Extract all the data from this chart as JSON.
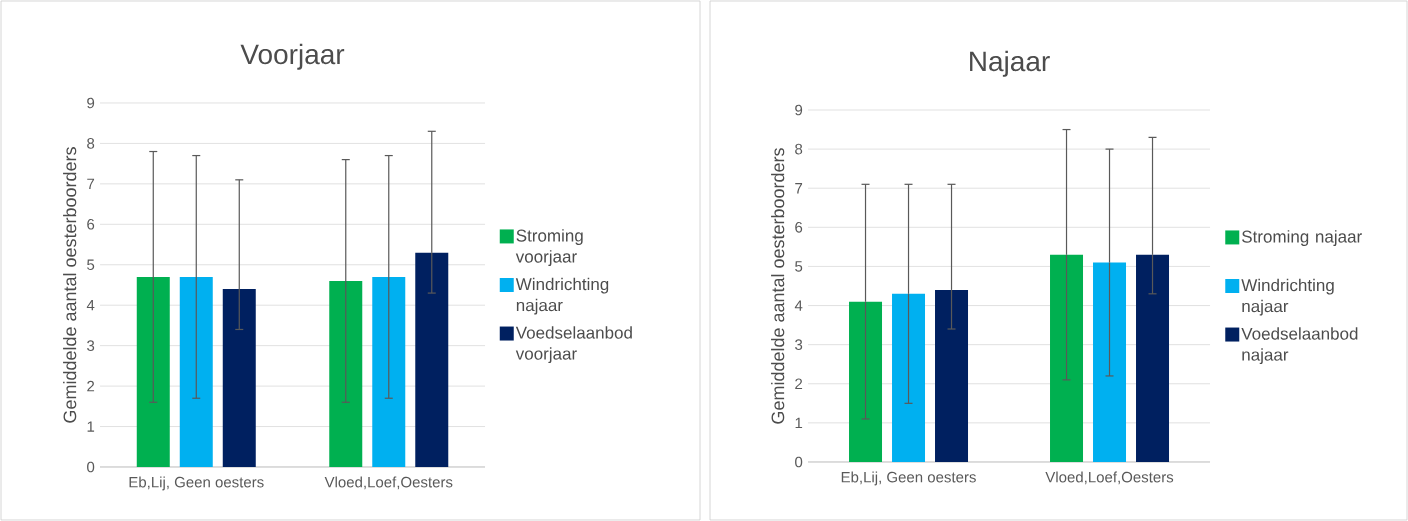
{
  "chart_data": [
    {
      "type": "bar",
      "title": "Voorjaar",
      "ylabel": "Gemiddelde aantal oesterboorders",
      "categories": [
        "Eb,Lij, Geen oesters",
        "Vloed,Loef,Oesters"
      ],
      "ylim": [
        0,
        9
      ],
      "yticks": [
        0,
        1,
        2,
        3,
        4,
        5,
        6,
        7,
        8,
        9
      ],
      "grid": "y",
      "legend": "right",
      "series": [
        {
          "name": "Stroming voorjaar",
          "color": "#00b050",
          "values": [
            4.7,
            4.6
          ],
          "errors": [
            [
              1.6,
              7.8
            ],
            [
              1.6,
              7.6
            ]
          ]
        },
        {
          "name": "Windrichting najaar",
          "color": "#00b0f0",
          "values": [
            4.7,
            4.7
          ],
          "errors": [
            [
              1.7,
              7.7
            ],
            [
              1.7,
              7.7
            ]
          ]
        },
        {
          "name": "Voedselaanbod voorjaar",
          "color": "#002060",
          "values": [
            4.4,
            5.3
          ],
          "errors": [
            [
              3.4,
              7.1
            ],
            [
              4.3,
              8.3
            ]
          ]
        }
      ]
    },
    {
      "type": "bar",
      "title": "Najaar",
      "ylabel": "Gemiddelde aantal oesterboorders",
      "categories": [
        "Eb,Lij, Geen oesters",
        "Vloed,Loef,Oesters"
      ],
      "ylim": [
        0,
        9
      ],
      "yticks": [
        0,
        1,
        2,
        3,
        4,
        5,
        6,
        7,
        8,
        9
      ],
      "grid": "y",
      "legend": "right",
      "series": [
        {
          "name": "Stroming najaar",
          "color": "#00b050",
          "values": [
            4.1,
            5.3
          ],
          "errors": [
            [
              1.1,
              7.1
            ],
            [
              2.1,
              8.5
            ]
          ]
        },
        {
          "name": "Windrichting najaar",
          "color": "#00b0f0",
          "values": [
            4.3,
            5.1
          ],
          "errors": [
            [
              1.5,
              7.1
            ],
            [
              2.2,
              8.0
            ]
          ]
        },
        {
          "name": "Voedselaanbod najaar",
          "color": "#002060",
          "values": [
            4.4,
            5.3
          ],
          "errors": [
            [
              3.4,
              7.1
            ],
            [
              4.3,
              8.3
            ]
          ]
        }
      ]
    }
  ]
}
